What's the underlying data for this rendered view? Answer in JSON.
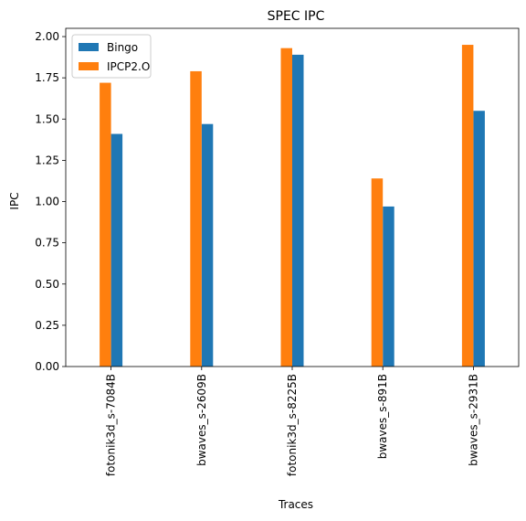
{
  "chart_data": {
    "type": "bar",
    "title": "SPEC IPC",
    "xlabel": "Traces",
    "ylabel": "IPC",
    "categories": [
      "fotonik3d_s-7084B",
      "bwaves_s-2609B",
      "fotonik3d_s-8225B",
      "bwaves_s-891B",
      "bwaves_s-2931B"
    ],
    "series": [
      {
        "name": "Bingo",
        "color": "#1f77b4",
        "values": [
          1.41,
          1.47,
          1.89,
          0.97,
          1.55
        ]
      },
      {
        "name": "IPCP2.O",
        "color": "#ff7f0e",
        "values": [
          1.72,
          1.79,
          1.93,
          1.14,
          1.95
        ]
      }
    ],
    "ylim": [
      0,
      2.05
    ],
    "yticks": [
      0.0,
      0.25,
      0.5,
      0.75,
      1.0,
      1.25,
      1.5,
      1.75,
      2.0
    ],
    "ytick_labels": [
      "0.00",
      "0.25",
      "0.50",
      "0.75",
      "1.00",
      "1.25",
      "1.50",
      "1.75",
      "2.00"
    ],
    "legend_position": "top-left",
    "grid": false
  }
}
